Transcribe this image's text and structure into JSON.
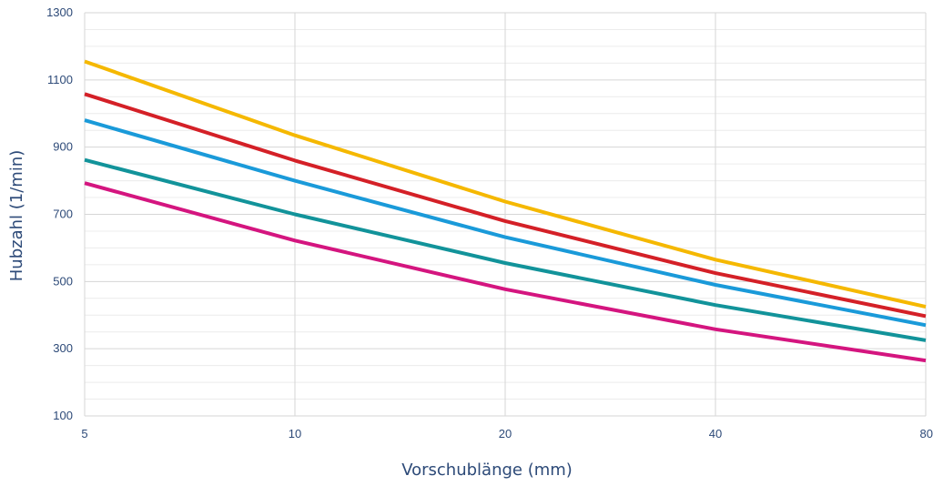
{
  "chart_data": {
    "type": "line",
    "title": "",
    "xlabel": "Vorschublänge (mm)",
    "ylabel": "Hubzahl (1/min)",
    "x": [
      5,
      10,
      20,
      40,
      80
    ],
    "x_tick_labels": [
      "5",
      "10",
      "20",
      "40",
      "80"
    ],
    "x_scale": "log2",
    "y_ticks": [
      100,
      300,
      500,
      700,
      900,
      1100,
      1300
    ],
    "y_tick_labels": [
      "100",
      "300",
      "500",
      "700",
      "900",
      "1100",
      "1300"
    ],
    "ylim": [
      100,
      1300
    ],
    "y_minor_step": 50,
    "grid": true,
    "legend": "none",
    "series": [
      {
        "color": "#f5b800",
        "values": [
          1155,
          935,
          738,
          565,
          425
        ]
      },
      {
        "color": "#d42027",
        "values": [
          1058,
          860,
          680,
          525,
          397
        ]
      },
      {
        "color": "#1a9ad9",
        "values": [
          980,
          800,
          632,
          490,
          370
        ]
      },
      {
        "color": "#12939a",
        "values": [
          862,
          700,
          555,
          430,
          325
        ]
      },
      {
        "color": "#d4157f",
        "values": [
          793,
          622,
          477,
          358,
          265
        ]
      }
    ]
  }
}
